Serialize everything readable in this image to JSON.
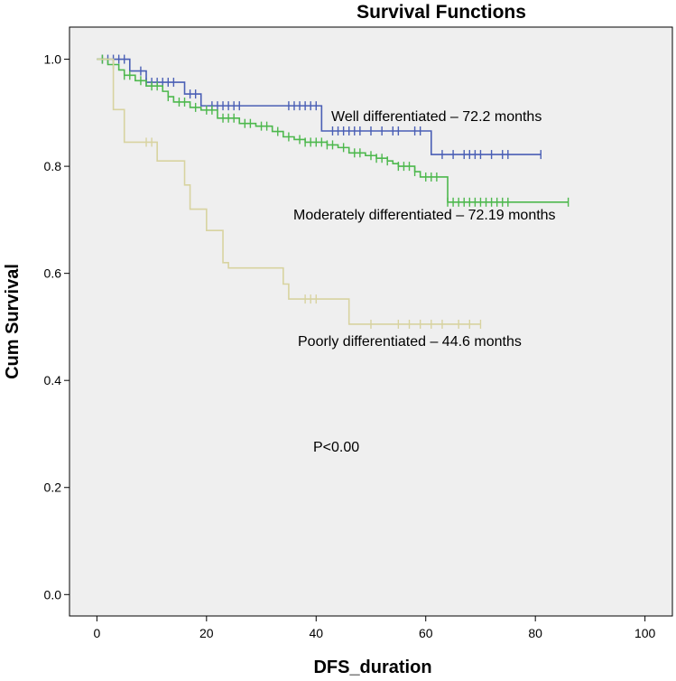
{
  "chart_data": {
    "type": "line",
    "title": "Survival Functions",
    "xlabel": "DFS_duration",
    "ylabel": "Cum Survival",
    "xlim": [
      -5,
      105
    ],
    "ylim": [
      -0.04,
      1.06
    ],
    "x_ticks": [
      "0",
      "20",
      "40",
      "60",
      "80",
      "100"
    ],
    "x_tick_values": [
      0,
      20,
      40,
      60,
      80,
      100
    ],
    "y_ticks": [
      "0.0",
      "0.2",
      "0.4",
      "0.6",
      "0.8",
      "1.0"
    ],
    "y_tick_values": [
      0.0,
      0.2,
      0.4,
      0.6,
      0.8,
      1.0
    ],
    "plot_background": "#efefef",
    "step_lines": true,
    "series": [
      {
        "name": "Well differentiated",
        "color": "#4a5fb5",
        "steps": [
          [
            0,
            1.0
          ],
          [
            6,
            0.978
          ],
          [
            9,
            0.957
          ],
          [
            16,
            0.935
          ],
          [
            19,
            0.913
          ],
          [
            41,
            0.866
          ],
          [
            61,
            0.822
          ]
        ],
        "end_x": 81,
        "censored": [
          1,
          2,
          3,
          4,
          5,
          8,
          9,
          10,
          11,
          12,
          13,
          14,
          17,
          18,
          21,
          22,
          23,
          24,
          25,
          26,
          35,
          36,
          37,
          38,
          39,
          40,
          43,
          44,
          45,
          46,
          47,
          48,
          50,
          52,
          54,
          55,
          58,
          59,
          63,
          65,
          67,
          68,
          69,
          70,
          72,
          74,
          75,
          81
        ]
      },
      {
        "name": "Moderately differentiated",
        "color": "#4db84d",
        "steps": [
          [
            0,
            1.0
          ],
          [
            2,
            0.99
          ],
          [
            4,
            0.98
          ],
          [
            5,
            0.97
          ],
          [
            7,
            0.96
          ],
          [
            9,
            0.95
          ],
          [
            12,
            0.94
          ],
          [
            13,
            0.93
          ],
          [
            14,
            0.92
          ],
          [
            17,
            0.91
          ],
          [
            19,
            0.905
          ],
          [
            22,
            0.89
          ],
          [
            26,
            0.88
          ],
          [
            29,
            0.875
          ],
          [
            32,
            0.865
          ],
          [
            34,
            0.855
          ],
          [
            36,
            0.85
          ],
          [
            38,
            0.845
          ],
          [
            42,
            0.84
          ],
          [
            44,
            0.835
          ],
          [
            46,
            0.825
          ],
          [
            49,
            0.82
          ],
          [
            51,
            0.815
          ],
          [
            53,
            0.81
          ],
          [
            54,
            0.805
          ],
          [
            55,
            0.8
          ],
          [
            58,
            0.79
          ],
          [
            59,
            0.78
          ],
          [
            64,
            0.733
          ]
        ],
        "end_x": 86,
        "censored": [
          1,
          3,
          5,
          6,
          8,
          10,
          11,
          13,
          15,
          16,
          18,
          20,
          21,
          23,
          24,
          25,
          27,
          28,
          30,
          31,
          33,
          35,
          37,
          38,
          39,
          40,
          41,
          42,
          43,
          45,
          47,
          48,
          50,
          51,
          52,
          53,
          55,
          56,
          57,
          58,
          60,
          61,
          62,
          64,
          65,
          66,
          67,
          68,
          69,
          70,
          71,
          72,
          73,
          74,
          75,
          86
        ]
      },
      {
        "name": "Poorly differentiated",
        "color": "#d8d3a0",
        "steps": [
          [
            0,
            1.0
          ],
          [
            3,
            0.906
          ],
          [
            5,
            0.845
          ],
          [
            11,
            0.81
          ],
          [
            16,
            0.765
          ],
          [
            17,
            0.72
          ],
          [
            20,
            0.68
          ],
          [
            23,
            0.62
          ],
          [
            24,
            0.61
          ],
          [
            34,
            0.58
          ],
          [
            35,
            0.552
          ],
          [
            46,
            0.505
          ]
        ],
        "end_x": 70,
        "censored": [
          9,
          10,
          38,
          39,
          40,
          50,
          55,
          57,
          59,
          61,
          63,
          66,
          68,
          70
        ]
      }
    ],
    "annotations": [
      "Well differentiated – 72.2 months",
      "Moderately differentiated – 72.19 months",
      "Poorly differentiated – 44.6 months",
      "P<0.00"
    ]
  }
}
